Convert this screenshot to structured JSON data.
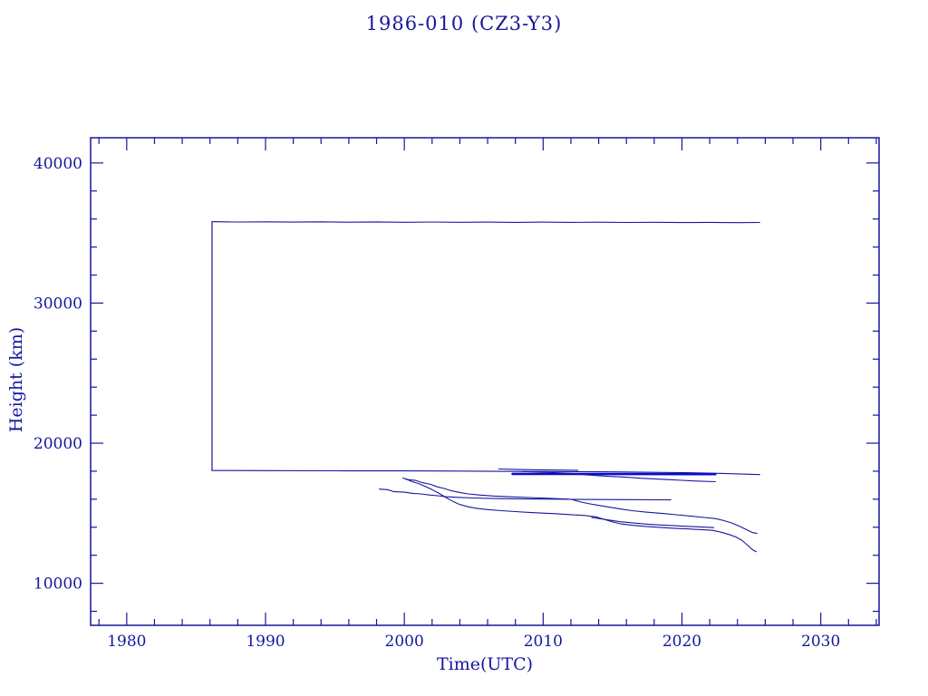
{
  "page": {
    "background_color": "#ffffff",
    "accent_color": "#16169e",
    "thick_line_color": "#0b0bd0"
  },
  "chart_data": {
    "type": "line",
    "title": "1986-010 (CZ3-Y3)",
    "xlabel": "Time(UTC)",
    "ylabel": "Height (km)",
    "xlim": [
      1977.4,
      2034.2
    ],
    "ylim": [
      7000,
      41800
    ],
    "x_major_ticks": [
      1980,
      1990,
      2000,
      2010,
      2020,
      2030
    ],
    "x_tick_labels": [
      "1980",
      "1990",
      "2000",
      "2010",
      "2020",
      "2030"
    ],
    "x_minor_step": 2,
    "y_major_ticks": [
      10000,
      20000,
      30000,
      40000
    ],
    "y_tick_labels": [
      "10000",
      "20000",
      "30000",
      "40000"
    ],
    "y_minor_step": 2000,
    "grid": false,
    "legend": false,
    "line_color": "#16169e",
    "series": [
      {
        "name": "launch-vertical",
        "width": 1.2,
        "points": [
          [
            1986.15,
            18050
          ],
          [
            1986.15,
            35810
          ]
        ]
      },
      {
        "name": "rocket-body-apogee",
        "width": 1.1,
        "points": [
          [
            1986.15,
            35810
          ],
          [
            1988,
            35785
          ],
          [
            1990,
            35800
          ],
          [
            1992,
            35778
          ],
          [
            1994,
            35795
          ],
          [
            1996,
            35772
          ],
          [
            1998,
            35790
          ],
          [
            2000,
            35768
          ],
          [
            2002,
            35785
          ],
          [
            2004,
            35763
          ],
          [
            2006,
            35780
          ],
          [
            2008,
            35758
          ],
          [
            2010,
            35775
          ],
          [
            2012,
            35757
          ],
          [
            2014,
            35770
          ],
          [
            2016,
            35752
          ],
          [
            2018,
            35765
          ],
          [
            2020,
            35748
          ],
          [
            2022,
            35760
          ],
          [
            2024,
            35742
          ],
          [
            2025.6,
            35750
          ]
        ]
      },
      {
        "name": "rocket-body-perigee",
        "width": 1.1,
        "points": [
          [
            1986.15,
            18050
          ],
          [
            1990,
            18040
          ],
          [
            1995,
            18030
          ],
          [
            2000,
            18020
          ],
          [
            2005,
            18000
          ],
          [
            2010,
            17980
          ],
          [
            2015,
            17950
          ],
          [
            2020,
            17900
          ],
          [
            2023,
            17840
          ],
          [
            2025.6,
            17760
          ]
        ]
      },
      {
        "name": "fragment-thick-17800",
        "width": 2.6,
        "points": [
          [
            2007.8,
            17810
          ],
          [
            2022.4,
            17790
          ]
        ]
      },
      {
        "name": "fragment-upper-short",
        "width": 1.1,
        "points": [
          [
            2006.8,
            18160
          ],
          [
            2008,
            18130
          ],
          [
            2009.5,
            18100
          ],
          [
            2011,
            18080
          ],
          [
            2012.5,
            18060
          ]
        ]
      },
      {
        "name": "fragment-decline-17k",
        "width": 1.1,
        "points": [
          [
            2008.5,
            17980
          ],
          [
            2010,
            17930
          ],
          [
            2012,
            17850
          ],
          [
            2013,
            17750
          ],
          [
            2014,
            17680
          ],
          [
            2015,
            17620
          ],
          [
            2016,
            17570
          ],
          [
            2017,
            17500
          ],
          [
            2018,
            17450
          ],
          [
            2019,
            17400
          ],
          [
            2020,
            17350
          ],
          [
            2021,
            17300
          ],
          [
            2022.4,
            17250
          ]
        ]
      },
      {
        "name": "fragment-16k-flat",
        "width": 1.1,
        "points": [
          [
            1998.2,
            16720
          ],
          [
            1998.8,
            16680
          ],
          [
            1999.2,
            16550
          ],
          [
            2000,
            16500
          ],
          [
            2000.6,
            16420
          ],
          [
            2001.2,
            16380
          ],
          [
            2001.8,
            16300
          ],
          [
            2002.4,
            16250
          ],
          [
            2003,
            16180
          ],
          [
            2004,
            16130
          ],
          [
            2005,
            16090
          ],
          [
            2006,
            16060
          ],
          [
            2008,
            16030
          ],
          [
            2010,
            16010
          ],
          [
            2012,
            15990
          ],
          [
            2014,
            15980
          ],
          [
            2016,
            15970
          ],
          [
            2018,
            15960
          ],
          [
            2019.2,
            15950
          ]
        ]
      },
      {
        "name": "fragment-step-a",
        "width": 1.1,
        "points": [
          [
            1999.9,
            17520
          ],
          [
            2000.2,
            17400
          ],
          [
            2000.8,
            17340
          ],
          [
            2001.3,
            17180
          ],
          [
            2001.9,
            17060
          ],
          [
            2002.4,
            16880
          ],
          [
            2002.9,
            16760
          ],
          [
            2003.4,
            16600
          ],
          [
            2004,
            16480
          ],
          [
            2004.6,
            16380
          ],
          [
            2005.4,
            16300
          ],
          [
            2006.4,
            16230
          ],
          [
            2007.5,
            16180
          ],
          [
            2009,
            16120
          ],
          [
            2010.5,
            16060
          ],
          [
            2012,
            16000
          ],
          [
            2012.6,
            15830
          ],
          [
            2013.2,
            15700
          ],
          [
            2014,
            15560
          ],
          [
            2014.8,
            15430
          ],
          [
            2015.6,
            15300
          ],
          [
            2016.4,
            15180
          ],
          [
            2017.4,
            15080
          ],
          [
            2018.6,
            14980
          ],
          [
            2019.6,
            14890
          ],
          [
            2020.6,
            14800
          ],
          [
            2021.6,
            14700
          ],
          [
            2022.4,
            14620
          ],
          [
            2023,
            14480
          ],
          [
            2023.6,
            14300
          ],
          [
            2024.2,
            14050
          ],
          [
            2024.7,
            13800
          ],
          [
            2025.1,
            13620
          ],
          [
            2025.4,
            13560
          ]
        ]
      },
      {
        "name": "fragment-step-b-lowest",
        "width": 1.1,
        "points": [
          [
            2000.1,
            17460
          ],
          [
            2000.5,
            17280
          ],
          [
            2001,
            17120
          ],
          [
            2001.5,
            16920
          ],
          [
            2002,
            16680
          ],
          [
            2002.5,
            16420
          ],
          [
            2003,
            16120
          ],
          [
            2003.5,
            15840
          ],
          [
            2004,
            15620
          ],
          [
            2004.6,
            15460
          ],
          [
            2005.2,
            15350
          ],
          [
            2006,
            15260
          ],
          [
            2007,
            15180
          ],
          [
            2008,
            15120
          ],
          [
            2009,
            15060
          ],
          [
            2010,
            15010
          ],
          [
            2011,
            14960
          ],
          [
            2012,
            14900
          ],
          [
            2013,
            14840
          ],
          [
            2013.8,
            14740
          ],
          [
            2014.4,
            14560
          ],
          [
            2015,
            14380
          ],
          [
            2015.6,
            14240
          ],
          [
            2016.4,
            14140
          ],
          [
            2017.4,
            14060
          ],
          [
            2018.4,
            13990
          ],
          [
            2019.4,
            13930
          ],
          [
            2020.4,
            13880
          ],
          [
            2021.4,
            13830
          ],
          [
            2022.2,
            13780
          ],
          [
            2022.8,
            13650
          ],
          [
            2023.4,
            13480
          ],
          [
            2023.9,
            13300
          ],
          [
            2024.3,
            13080
          ],
          [
            2024.6,
            12820
          ],
          [
            2024.9,
            12560
          ],
          [
            2025.1,
            12380
          ],
          [
            2025.35,
            12260
          ]
        ]
      },
      {
        "name": "fragment-mid-14k",
        "width": 1.1,
        "points": [
          [
            2013.5,
            14700
          ],
          [
            2014.5,
            14550
          ],
          [
            2015.5,
            14400
          ],
          [
            2016.5,
            14300
          ],
          [
            2017.5,
            14220
          ],
          [
            2018.5,
            14160
          ],
          [
            2019.5,
            14110
          ],
          [
            2020.5,
            14060
          ],
          [
            2021.5,
            14010
          ],
          [
            2022.3,
            13970
          ]
        ]
      }
    ]
  }
}
